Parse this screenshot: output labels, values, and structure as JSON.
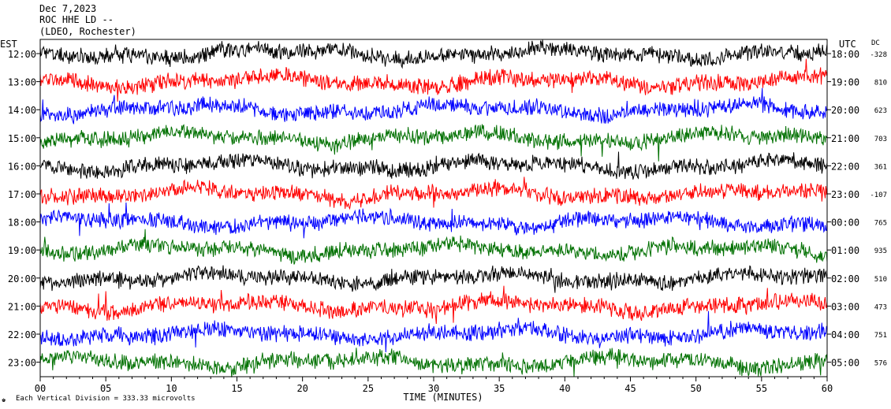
{
  "header": {
    "date": "Dec 7,2023",
    "station": "ROC HHE LD --",
    "network": "(LDEO, Rochester)"
  },
  "labels": {
    "left_tz": "EST",
    "right_tz": "UTC",
    "dc": "DC",
    "xlabel": "TIME (MINUTES)",
    "footnote_mark": "♚",
    "footnote": "Each Vertical Division =  333.33 microvolts"
  },
  "colors": {
    "cycle": [
      "#000000",
      "#ff0000",
      "#0000ff",
      "#007000"
    ]
  },
  "chart_data": {
    "type": "line",
    "title": "",
    "xlabel": "TIME (MINUTES)",
    "ylabel": "",
    "xlim": [
      0,
      60
    ],
    "x_ticks": [
      "00",
      "05",
      "10",
      "15",
      "20",
      "25",
      "30",
      "35",
      "40",
      "45",
      "50",
      "55",
      "60"
    ],
    "rows": [
      {
        "est": "12:00",
        "utc": "18:00",
        "dc": "-328"
      },
      {
        "est": "13:00",
        "utc": "19:00",
        "dc": "810"
      },
      {
        "est": "14:00",
        "utc": "20:00",
        "dc": "623"
      },
      {
        "est": "15:00",
        "utc": "21:00",
        "dc": "703"
      },
      {
        "est": "16:00",
        "utc": "22:00",
        "dc": "361"
      },
      {
        "est": "17:00",
        "utc": "23:00",
        "dc": "-107"
      },
      {
        "est": "18:00",
        "utc": "00:00",
        "dc": "765"
      },
      {
        "est": "19:00",
        "utc": "01:00",
        "dc": "935"
      },
      {
        "est": "20:00",
        "utc": "02:00",
        "dc": "510"
      },
      {
        "est": "21:00",
        "utc": "03:00",
        "dc": "473"
      },
      {
        "est": "22:00",
        "utc": "04:00",
        "dc": "751"
      },
      {
        "est": "23:00",
        "utc": "05:00",
        "dc": "576"
      }
    ]
  }
}
